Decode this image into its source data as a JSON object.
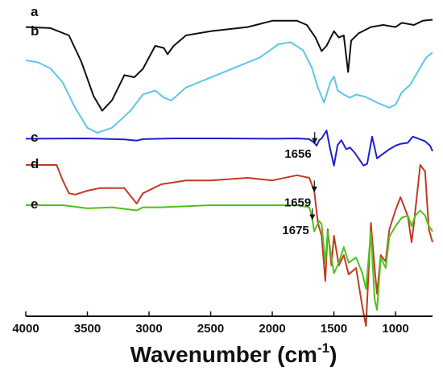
{
  "chart_data": {
    "type": "line",
    "xlabel": "Wavenumber (cm",
    "xlabel_sup": "-1",
    "xlabel_end": ")",
    "xlim": [
      4000,
      700
    ],
    "x_reversed": true,
    "xticks": [
      4000,
      3500,
      3000,
      2500,
      2000,
      1500,
      1000
    ],
    "grid": false,
    "series": [
      {
        "name": "a",
        "color": "#111111",
        "offset": 0,
        "points": [
          [
            4000,
            0.12
          ],
          [
            3800,
            0.13
          ],
          [
            3650,
            0.2
          ],
          [
            3550,
            0.45
          ],
          [
            3450,
            0.78
          ],
          [
            3380,
            0.92
          ],
          [
            3300,
            0.82
          ],
          [
            3200,
            0.58
          ],
          [
            3120,
            0.6
          ],
          [
            3050,
            0.52
          ],
          [
            2950,
            0.3
          ],
          [
            2880,
            0.32
          ],
          [
            2850,
            0.38
          ],
          [
            2800,
            0.3
          ],
          [
            2700,
            0.2
          ],
          [
            2500,
            0.16
          ],
          [
            2200,
            0.12
          ],
          [
            2000,
            0.06
          ],
          [
            1800,
            0.06
          ],
          [
            1720,
            0.1
          ],
          [
            1650,
            0.22
          ],
          [
            1600,
            0.35
          ],
          [
            1560,
            0.3
          ],
          [
            1500,
            0.16
          ],
          [
            1460,
            0.22
          ],
          [
            1420,
            0.2
          ],
          [
            1385,
            0.55
          ],
          [
            1360,
            0.25
          ],
          [
            1300,
            0.18
          ],
          [
            1200,
            0.12
          ],
          [
            1100,
            0.1
          ],
          [
            1000,
            0.12
          ],
          [
            950,
            0.08
          ],
          [
            850,
            0.1
          ],
          [
            780,
            0.06
          ],
          [
            700,
            0.05
          ]
        ]
      },
      {
        "name": "b",
        "color": "#5bc8e8",
        "offset": 0,
        "points": [
          [
            4000,
            0.28
          ],
          [
            3900,
            0.3
          ],
          [
            3800,
            0.36
          ],
          [
            3700,
            0.5
          ],
          [
            3600,
            0.75
          ],
          [
            3500,
            0.95
          ],
          [
            3420,
            1.0
          ],
          [
            3300,
            0.95
          ],
          [
            3150,
            0.78
          ],
          [
            3050,
            0.62
          ],
          [
            2950,
            0.58
          ],
          [
            2880,
            0.65
          ],
          [
            2820,
            0.68
          ],
          [
            2700,
            0.55
          ],
          [
            2500,
            0.45
          ],
          [
            2300,
            0.35
          ],
          [
            2100,
            0.25
          ],
          [
            1950,
            0.12
          ],
          [
            1850,
            0.1
          ],
          [
            1750,
            0.18
          ],
          [
            1680,
            0.35
          ],
          [
            1630,
            0.55
          ],
          [
            1580,
            0.7
          ],
          [
            1530,
            0.5
          ],
          [
            1500,
            0.44
          ],
          [
            1470,
            0.58
          ],
          [
            1420,
            0.62
          ],
          [
            1370,
            0.65
          ],
          [
            1320,
            0.62
          ],
          [
            1250,
            0.64
          ],
          [
            1150,
            0.7
          ],
          [
            1050,
            0.75
          ],
          [
            1000,
            0.72
          ],
          [
            950,
            0.6
          ],
          [
            880,
            0.52
          ],
          [
            800,
            0.35
          ],
          [
            750,
            0.25
          ],
          [
            700,
            0.2
          ]
        ]
      },
      {
        "name": "c",
        "color": "#1f1fcf",
        "offset": 0,
        "points": [
          [
            4000,
            0.01
          ],
          [
            3500,
            0.0
          ],
          [
            3200,
            0.03
          ],
          [
            3100,
            0.06
          ],
          [
            3050,
            0.02
          ],
          [
            2800,
            0.0
          ],
          [
            2400,
            0.0
          ],
          [
            2000,
            0.01
          ],
          [
            1800,
            0.0
          ],
          [
            1700,
            0.02
          ],
          [
            1660,
            0.12
          ],
          [
            1640,
            0.2
          ],
          [
            1620,
            0.05
          ],
          [
            1600,
            0.0
          ],
          [
            1560,
            -0.22
          ],
          [
            1530,
            0.3
          ],
          [
            1500,
            0.75
          ],
          [
            1470,
            0.18
          ],
          [
            1440,
            0.05
          ],
          [
            1400,
            0.3
          ],
          [
            1370,
            0.25
          ],
          [
            1330,
            0.4
          ],
          [
            1300,
            0.55
          ],
          [
            1260,
            0.75
          ],
          [
            1230,
            0.7
          ],
          [
            1190,
            -0.05
          ],
          [
            1150,
            0.55
          ],
          [
            1100,
            0.42
          ],
          [
            1050,
            0.3
          ],
          [
            1000,
            0.2
          ],
          [
            960,
            0.15
          ],
          [
            900,
            0.12
          ],
          [
            860,
            -0.05
          ],
          [
            820,
            0.0
          ],
          [
            760,
            0.08
          ],
          [
            720,
            0.2
          ],
          [
            700,
            0.35
          ]
        ]
      },
      {
        "name": "d",
        "color": "#c23a24",
        "offset": 0,
        "points": [
          [
            4000,
            0.0
          ],
          [
            3750,
            0.0
          ],
          [
            3700,
            0.12
          ],
          [
            3650,
            0.22
          ],
          [
            3600,
            0.23
          ],
          [
            3500,
            0.2
          ],
          [
            3400,
            0.18
          ],
          [
            3200,
            0.18
          ],
          [
            3100,
            0.3
          ],
          [
            3050,
            0.22
          ],
          [
            2900,
            0.15
          ],
          [
            2700,
            0.12
          ],
          [
            2500,
            0.12
          ],
          [
            2200,
            0.1
          ],
          [
            2000,
            0.12
          ],
          [
            1800,
            0.08
          ],
          [
            1700,
            0.1
          ],
          [
            1660,
            0.2
          ],
          [
            1630,
            0.45
          ],
          [
            1600,
            0.55
          ],
          [
            1570,
            0.9
          ],
          [
            1550,
            0.5
          ],
          [
            1520,
            0.78
          ],
          [
            1500,
            0.55
          ],
          [
            1460,
            0.78
          ],
          [
            1420,
            0.7
          ],
          [
            1380,
            0.85
          ],
          [
            1320,
            0.8
          ],
          [
            1270,
            1.1
          ],
          [
            1240,
            1.25
          ],
          [
            1200,
            0.45
          ],
          [
            1170,
            0.8
          ],
          [
            1150,
            1.0
          ],
          [
            1120,
            0.7
          ],
          [
            1080,
            0.75
          ],
          [
            1050,
            0.5
          ],
          [
            1000,
            0.35
          ],
          [
            960,
            0.25
          ],
          [
            900,
            0.4
          ],
          [
            870,
            0.6
          ],
          [
            850,
            0.45
          ],
          [
            800,
            0.0
          ],
          [
            760,
            0.05
          ],
          [
            730,
            0.5
          ],
          [
            700,
            0.6
          ]
        ]
      },
      {
        "name": "e",
        "color": "#4fc21c",
        "offset": 0,
        "points": [
          [
            4000,
            0.0
          ],
          [
            3700,
            0.0
          ],
          [
            3500,
            0.03
          ],
          [
            3300,
            0.02
          ],
          [
            3100,
            0.05
          ],
          [
            3050,
            0.02
          ],
          [
            2900,
            0.02
          ],
          [
            2500,
            0.0
          ],
          [
            2000,
            0.0
          ],
          [
            1800,
            0.0
          ],
          [
            1700,
            0.02
          ],
          [
            1680,
            0.1
          ],
          [
            1660,
            0.25
          ],
          [
            1620,
            0.15
          ],
          [
            1600,
            0.18
          ],
          [
            1570,
            0.55
          ],
          [
            1550,
            0.25
          ],
          [
            1520,
            0.5
          ],
          [
            1500,
            0.65
          ],
          [
            1460,
            0.55
          ],
          [
            1420,
            0.4
          ],
          [
            1380,
            0.55
          ],
          [
            1320,
            0.5
          ],
          [
            1270,
            0.65
          ],
          [
            1240,
            0.8
          ],
          [
            1200,
            0.25
          ],
          [
            1170,
            0.9
          ],
          [
            1150,
            1.0
          ],
          [
            1120,
            0.5
          ],
          [
            1080,
            0.6
          ],
          [
            1050,
            0.3
          ],
          [
            1000,
            0.2
          ],
          [
            950,
            0.12
          ],
          [
            900,
            0.1
          ],
          [
            870,
            0.2
          ],
          [
            840,
            0.1
          ],
          [
            800,
            0.05
          ],
          [
            760,
            0.1
          ],
          [
            730,
            0.2
          ],
          [
            700,
            0.25
          ]
        ]
      }
    ],
    "annotations": [
      {
        "label": "1656",
        "x": 1656,
        "series": "c"
      },
      {
        "label": "1659",
        "x": 1659,
        "series": "d"
      },
      {
        "label": "1675",
        "x": 1675,
        "series": "e"
      }
    ]
  }
}
